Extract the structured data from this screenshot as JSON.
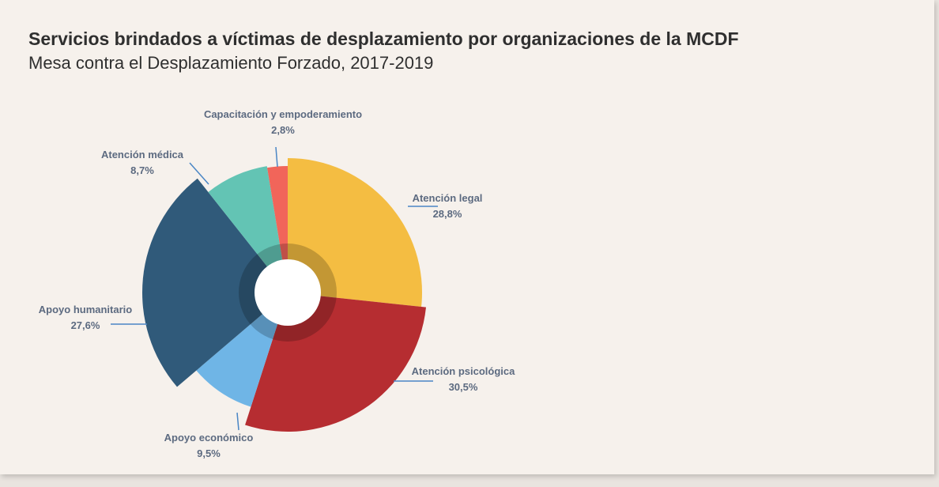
{
  "header": {
    "title": "Servicios brindados a víctimas de desplazamiento por organizaciones de la MCDF",
    "subtitle": "Mesa contra el Desplazamiento Forzado, 2017-2019"
  },
  "chart_data": {
    "type": "pie",
    "variant": "variable-radius donut",
    "title": "Servicios brindados a víctimas de desplazamiento por organizaciones de la MCDF",
    "subtitle": "Mesa contra el Desplazamiento Forzado, 2017-2019",
    "slices": [
      {
        "name": "Atención legal",
        "value": 28.8,
        "label": "28,8%",
        "color": "#f4bd42"
      },
      {
        "name": "Atención psicológica",
        "value": 30.5,
        "label": "30,5%",
        "color": "#b62d31"
      },
      {
        "name": "Apoyo económico",
        "value": 9.5,
        "label": "9,5%",
        "color": "#6fb5e6"
      },
      {
        "name": "Apoyo humanitario",
        "value": 27.6,
        "label": "27,6%",
        "color": "#305a7a"
      },
      {
        "name": "Atención médica",
        "value": 8.7,
        "label": "8,7%",
        "color": "#63c4b4"
      },
      {
        "name": "Capacitación y empoderamiento",
        "value": 2.8,
        "label": "2,8%",
        "color": "#f1655a"
      }
    ],
    "leader_line_color": "#4a86c5"
  }
}
